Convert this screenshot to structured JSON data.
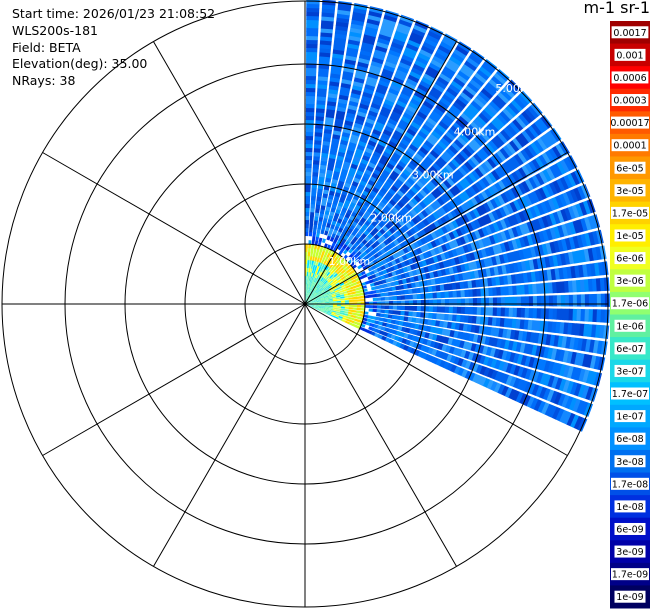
{
  "info": {
    "start_time": "Start time: 2026/01/23 21:08:52",
    "instrument": "WLS200s-181",
    "field": "Field: BETA",
    "elevation": "Elevation(deg): 35.00",
    "nrays": "NRays: 38"
  },
  "scan": {
    "azimuth_start_deg": 0,
    "azimuth_end_deg": 115,
    "ray_count": 38,
    "max_range_km": 5.0
  },
  "range_rings": {
    "labels": [
      "1.00km",
      "2.00km",
      "3.00km",
      "4.00km",
      "5.00km"
    ]
  },
  "colorbar": {
    "title": "m-1 sr-1",
    "labels": [
      "0.0017",
      "0.001",
      "0.0006",
      "0.0003",
      "0.00017",
      "0.0001",
      "6e-05",
      "3e-05",
      "1.7e-05",
      "1e-05",
      "6e-06",
      "3e-06",
      "1.7e-06",
      "1e-06",
      "6e-07",
      "3e-07",
      "1.7e-07",
      "1e-07",
      "6e-08",
      "3e-08",
      "1.7e-08",
      "1e-08",
      "6e-09",
      "3e-09",
      "1.7e-09",
      "1e-09"
    ],
    "colors": [
      "#a00000",
      "#c80000",
      "#ff0000",
      "#ff2a00",
      "#ff5a00",
      "#ff7a00",
      "#ff9800",
      "#ffb400",
      "#ffd200",
      "#ffee00",
      "#f0ff20",
      "#c0ff40",
      "#90ff70",
      "#60f0a0",
      "#38e8c8",
      "#1ad8e8",
      "#00c0ff",
      "#00a8ff",
      "#0090ff",
      "#0070f0",
      "#0050e8",
      "#0030e0",
      "#0010c8",
      "#0000a8",
      "#000088",
      "#000060"
    ]
  }
}
